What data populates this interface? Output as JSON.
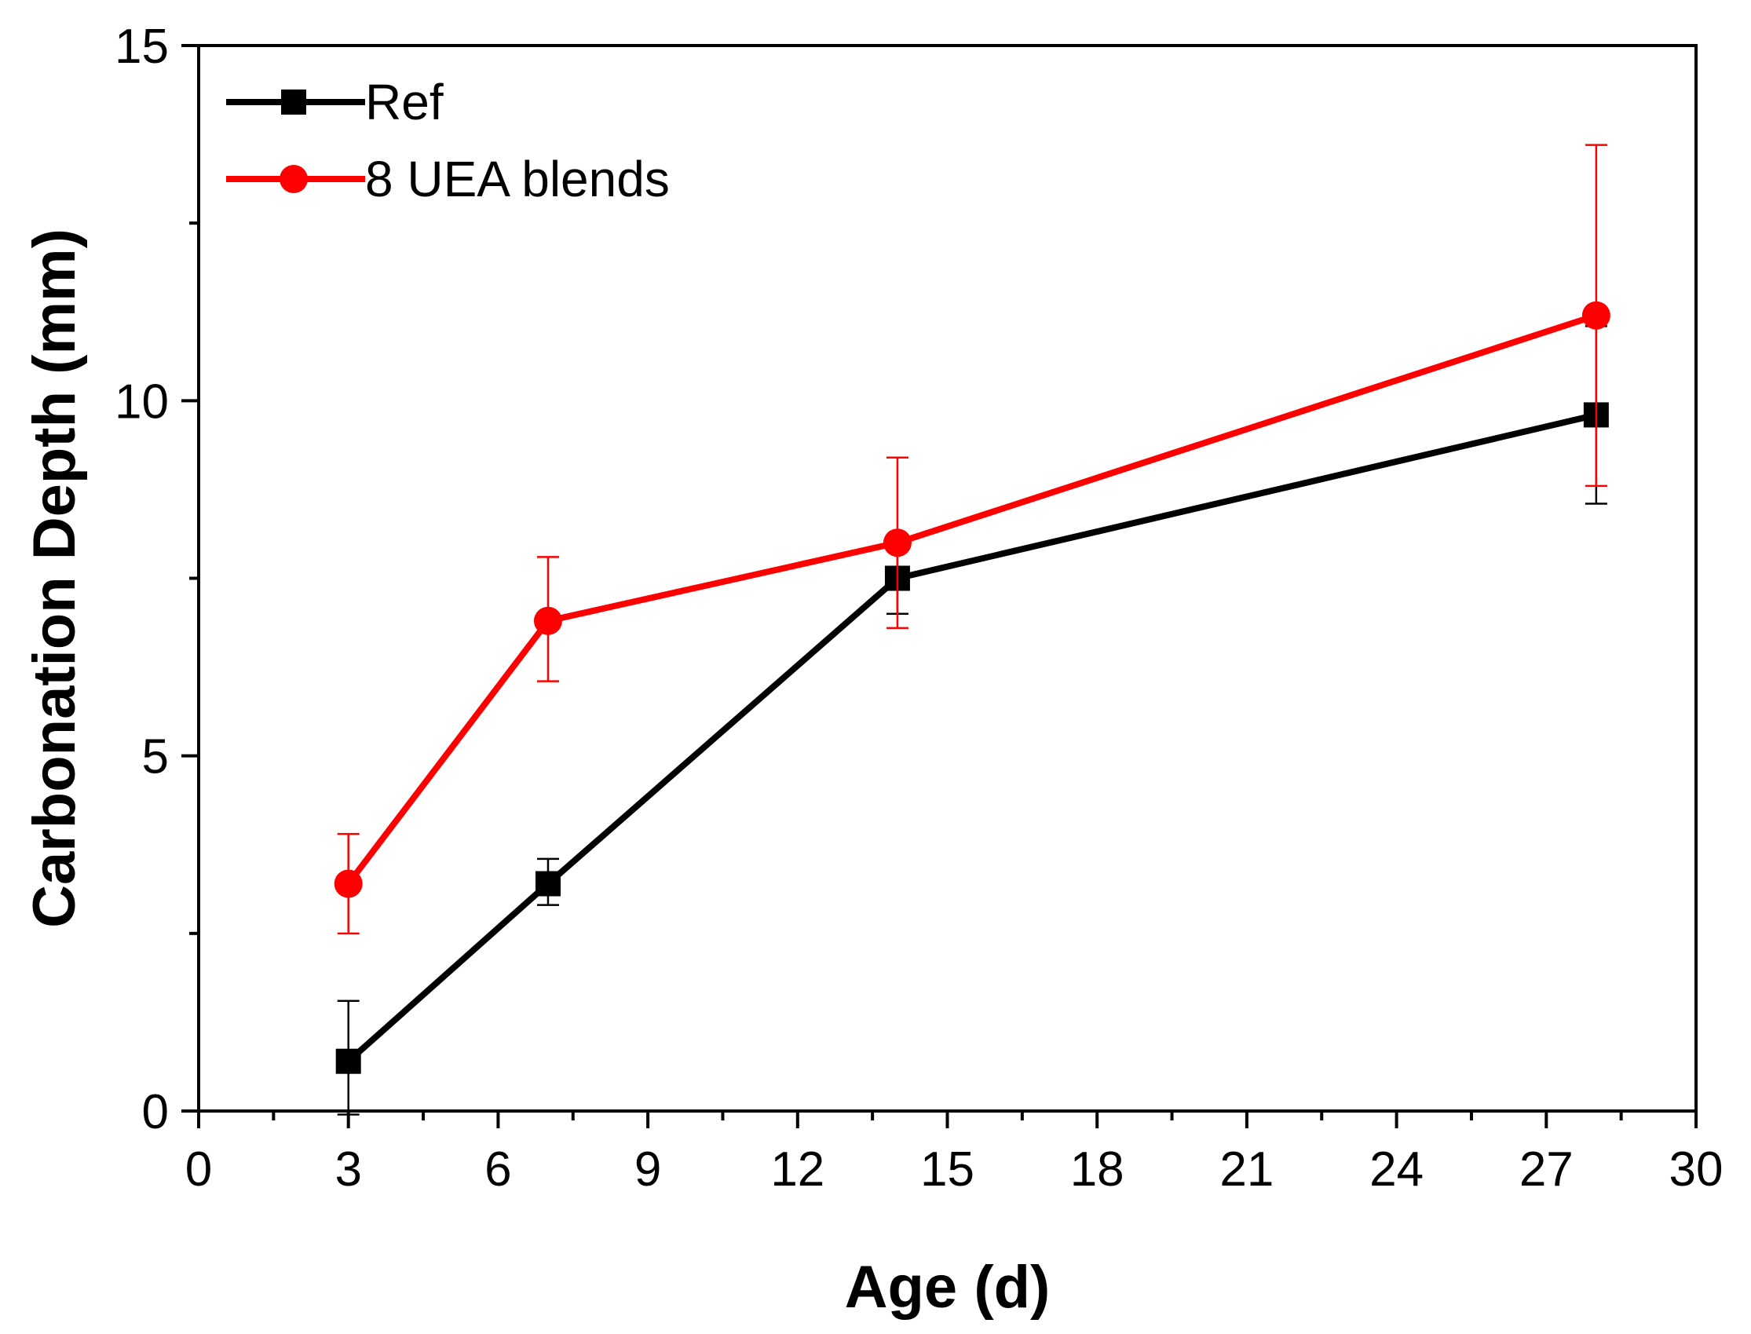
{
  "chart_data": {
    "type": "line",
    "title": "",
    "xlabel": "Age (d)",
    "ylabel": "Carbonation Depth (mm)",
    "xlim": [
      0,
      30
    ],
    "ylim": [
      0,
      15
    ],
    "x_ticks": [
      "0",
      "3",
      "6",
      "9",
      "12",
      "15",
      "18",
      "21",
      "24",
      "27",
      "30"
    ],
    "y_ticks": [
      "0",
      "5",
      "10",
      "15"
    ],
    "grid": false,
    "legend_position": "top-left",
    "series": [
      {
        "name": "Ref",
        "color": "#000000",
        "marker": "square",
        "x": [
          3,
          7,
          14,
          28
        ],
        "y": [
          0.7,
          3.2,
          7.5,
          9.8
        ],
        "err_low": [
          0.75,
          0.3,
          0.5,
          1.25
        ],
        "err_high": [
          0.85,
          0.35,
          0.5,
          1.25
        ]
      },
      {
        "name": "8 UEA blends",
        "color": "#ff0000",
        "marker": "circle",
        "x": [
          3,
          7,
          14,
          28
        ],
        "y": [
          3.2,
          6.9,
          8.0,
          11.2
        ],
        "err_low": [
          0.7,
          0.85,
          1.2,
          2.4
        ],
        "err_high": [
          0.7,
          0.9,
          1.2,
          2.4
        ]
      }
    ]
  }
}
